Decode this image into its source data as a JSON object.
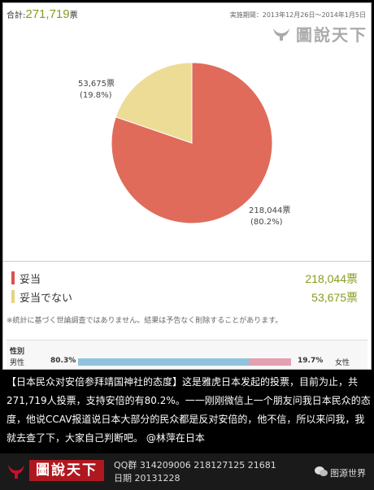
{
  "header": {
    "total_label": "合計:",
    "total_value": "271,719",
    "total_unit": "票",
    "period": "実施期間：2013年12月26日～2014年1月5日",
    "logo_text": "圖說天下"
  },
  "chart_data": {
    "type": "pie",
    "slices": [
      {
        "name": "妥当",
        "votes": 218044,
        "percent": 80.2,
        "label": "218,044票",
        "percent_label": "(80.2%)",
        "color": "#e06b5a"
      },
      {
        "name": "妥当でない",
        "votes": 53675,
        "percent": 19.8,
        "label": "53,675票",
        "percent_label": "(19.8%)",
        "color": "#ecdc96"
      }
    ],
    "total": 271719
  },
  "legend": [
    {
      "label": "妥当",
      "value": "218,044票",
      "color": "#d9534f"
    },
    {
      "label": "妥当でない",
      "value": "53,675票",
      "color": "#e5d47e"
    }
  ],
  "note": "※統計に基づく世論調査ではありません。結果は予告なく削除することがあります。",
  "gender": {
    "title": "性別",
    "male_label": "男性",
    "male_percent": "80.3%",
    "male_fraction": 0.803,
    "female_percent": "19.7%",
    "female_label": "女性"
  },
  "caption": "【日本民众对安倍参拜靖国神社的态度】这是雅虎日本发起的投票，目前为止，共271,719人投票，支持安倍的有80.2%。一一刚刚微信上一个朋友问我日本民众的态度，他说CCAV报道说日本大部分的民众都是反对安倍的，他不信，所以来问我，我就去查了下，大家自己判断吧。 @林萍在日本",
  "footer": {
    "logo_text": "圖說天下",
    "qq": "QQ群 314209006   218127125   21681",
    "date": "日期 20131228",
    "source": "图源世界"
  }
}
